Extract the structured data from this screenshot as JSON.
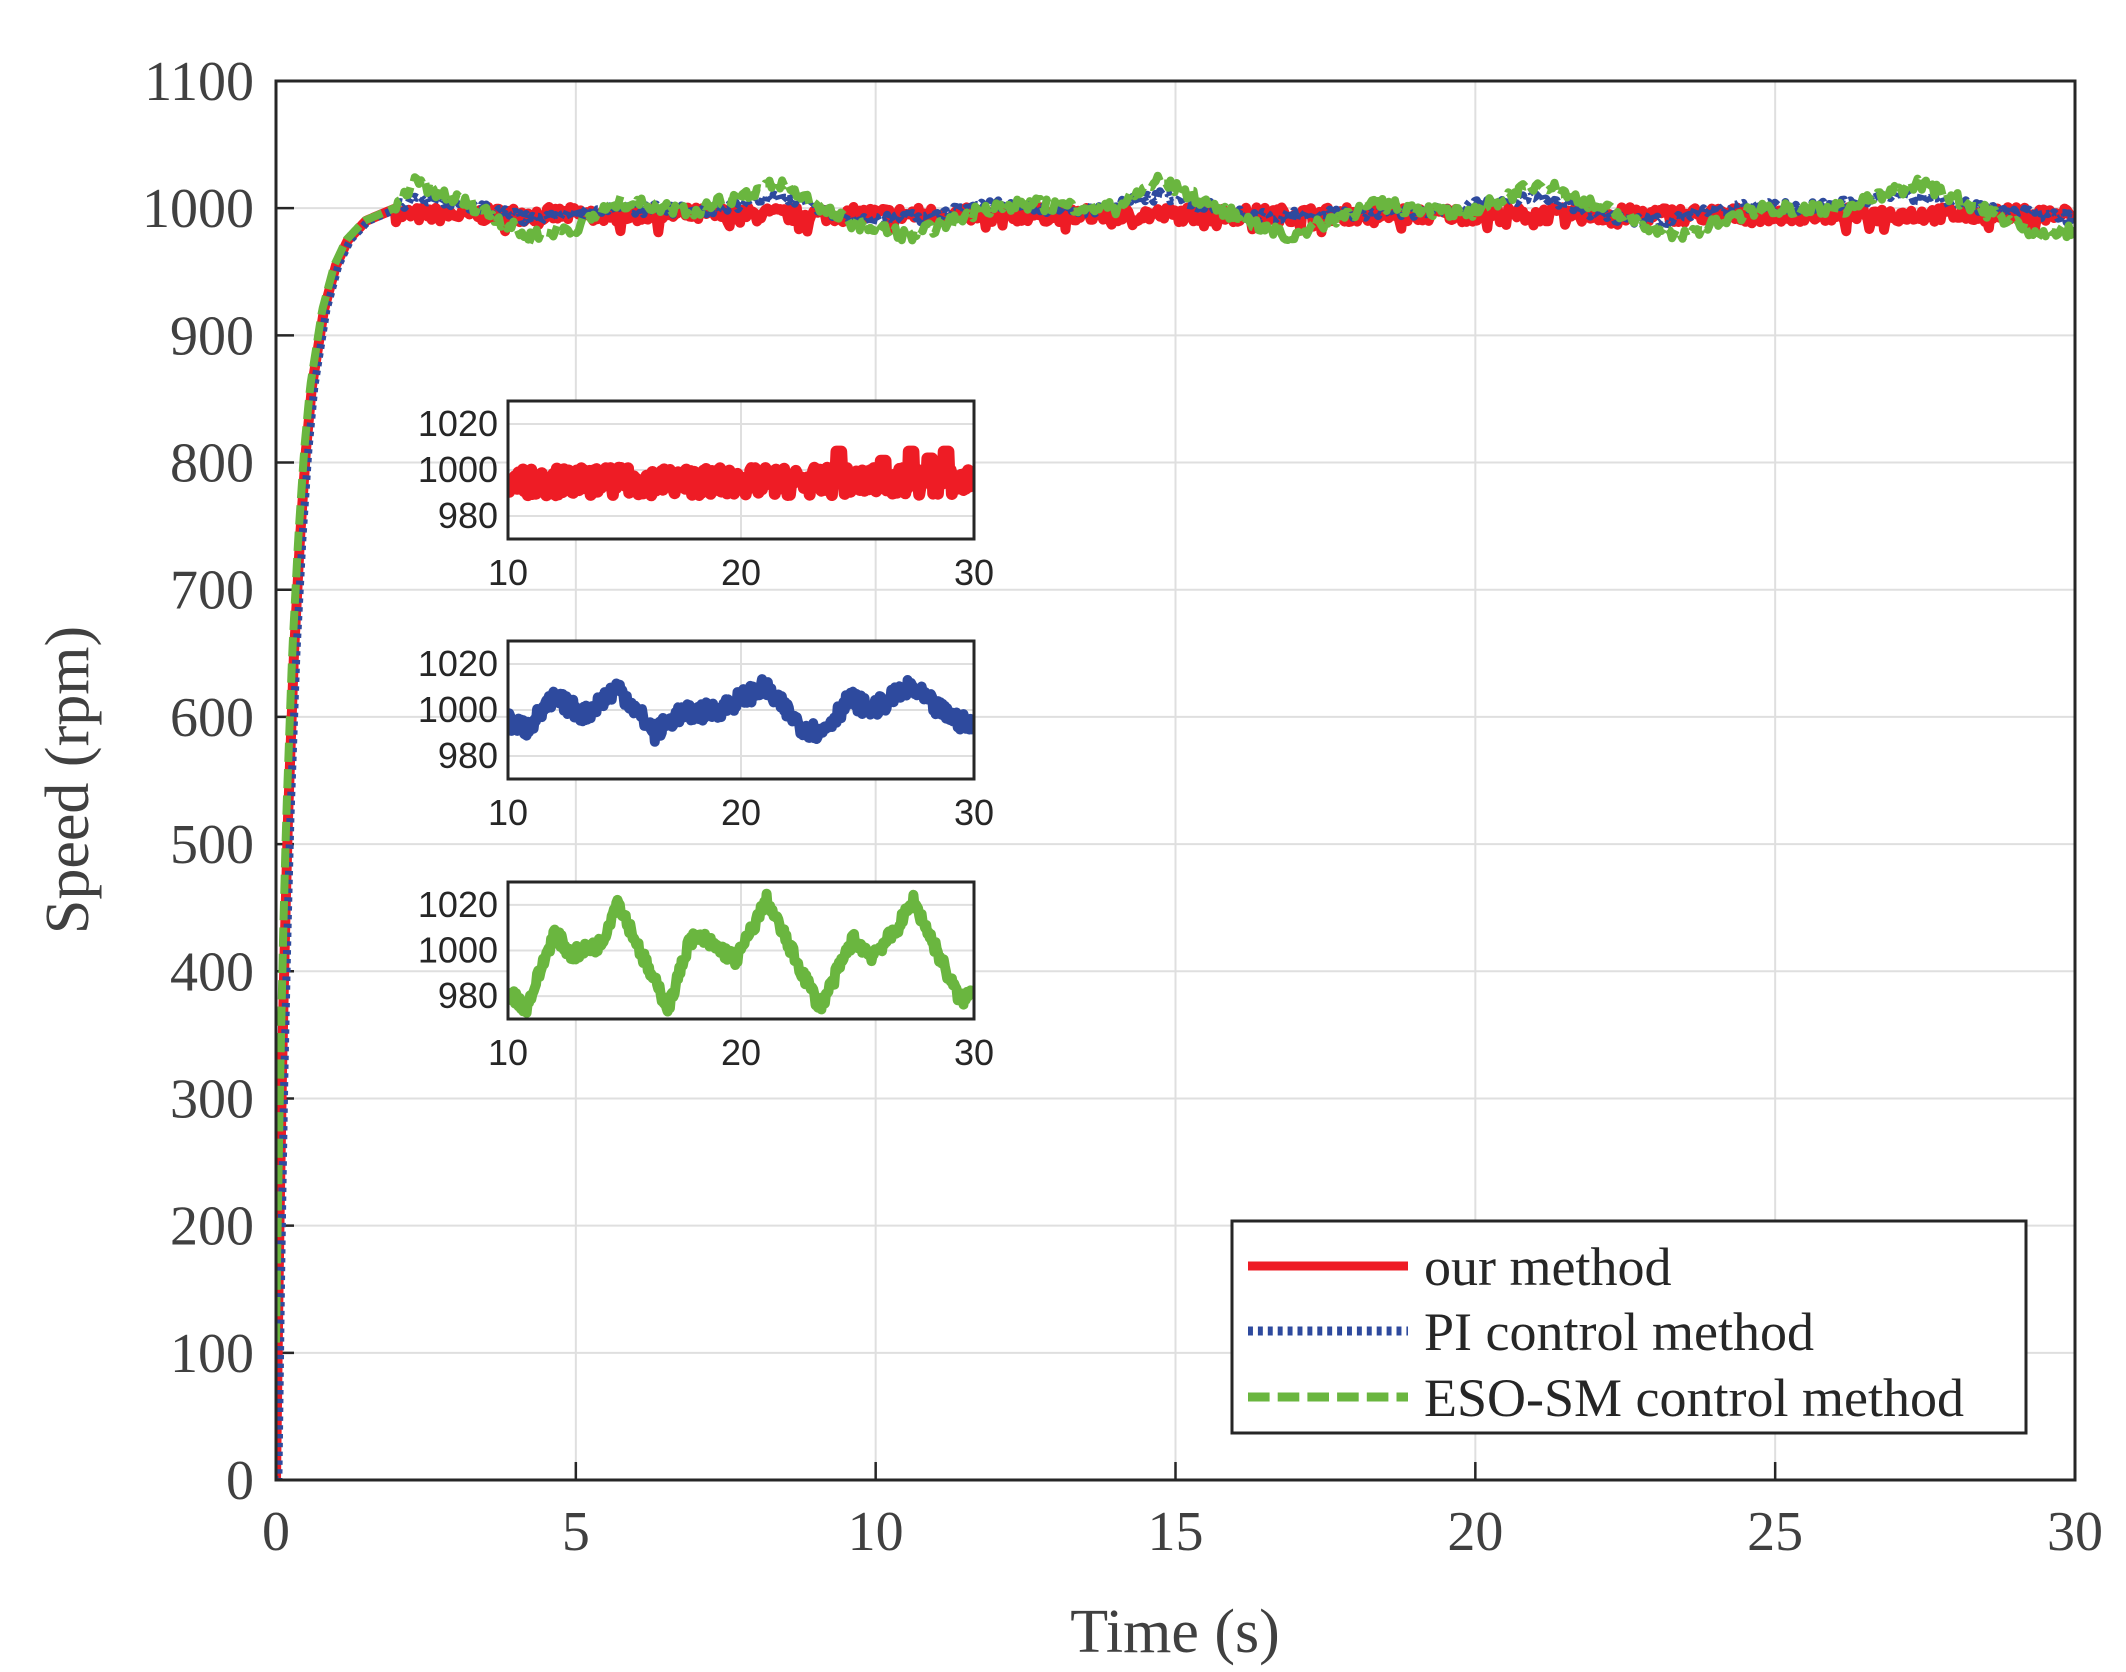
{
  "chart_data": [
    {
      "id": "main",
      "type": "line",
      "title": "",
      "xlabel": "Time (s)",
      "ylabel": "Speed (rpm)",
      "xlim": [
        0,
        30
      ],
      "ylim": [
        0,
        1100
      ],
      "xticks": [
        0,
        5,
        10,
        15,
        20,
        25,
        30
      ],
      "yticks": [
        0,
        100,
        200,
        300,
        400,
        500,
        600,
        700,
        800,
        900,
        1000,
        1100
      ],
      "grid": true,
      "legend_position": "bottom-right",
      "rise": {
        "t": [
          0,
          0.05,
          0.1,
          0.15,
          0.2,
          0.3,
          0.4,
          0.5,
          0.6,
          0.8,
          1.0,
          1.2,
          1.5,
          2.0
        ],
        "v": [
          0,
          180,
          320,
          430,
          520,
          650,
          740,
          810,
          860,
          920,
          955,
          975,
          990,
          1000
        ]
      },
      "series": [
        {
          "name": "our method",
          "color": "#ee1c25",
          "style": "solid",
          "steady": {
            "t": [
              2,
              30
            ],
            "v": [
              995,
              995
            ]
          },
          "ripple": 6
        },
        {
          "name": "PI control method",
          "color": "#2e4a9e",
          "style": "dotted",
          "steady": {
            "t": [
              2,
              2.4,
              3.5,
              4.3,
              5.5,
              7.2,
              8.5,
              9.7,
              10.8,
              12.0,
              13.5,
              14.8,
              16.3,
              17.5,
              19.3,
              21.0,
              22.3,
              23.2,
              24.4,
              25.5,
              27.2,
              28.5,
              30
            ],
            "v": [
              1000,
              1008,
              1000,
              990,
              1000,
              998,
              1010,
              990,
              993,
              1003,
              998,
              1010,
              993,
              996,
              997,
              1010,
              992,
              991,
              1003,
              1000,
              1010,
              1000,
              992
            ]
          },
          "ripple": 4
        },
        {
          "name": "ESO-SM control method",
          "color": "#6ab63f",
          "style": "dashed",
          "steady": {
            "t": [
              2,
              2.3,
              3.4,
              4.2,
              5.0,
              5.7,
              7.0,
              8.4,
              9.5,
              10.6,
              11.8,
              12.6,
              14.0,
              14.7,
              16.2,
              16.9,
              17.8,
              18.4,
              19.8,
              21.1,
              22.5,
              23.4,
              24.8,
              26.2,
              27.4,
              29.4,
              30
            ],
            "v": [
              1000,
              1020,
              1000,
              978,
              985,
              1005,
              998,
              1020,
              990,
              978,
              1000,
              1003,
              1000,
              1022,
              990,
              977,
              995,
              1003,
              995,
              1020,
              993,
              978,
              1000,
              1000,
              1020,
              980,
              982
            ]
          },
          "ripple": 5
        }
      ]
    },
    {
      "id": "inset-1",
      "type": "line",
      "series_name": "our method",
      "color": "#ee1c25",
      "xlim": [
        10,
        30
      ],
      "ylim": [
        970,
        1030
      ],
      "xticks": [
        10,
        20,
        30
      ],
      "yticks": [
        980,
        1000,
        1020
      ],
      "grid": true,
      "t": [
        10,
        30
      ],
      "v": [
        995,
        995
      ],
      "spikes_t": [
        24.2,
        26.1,
        27.3,
        28.1,
        28.8
      ],
      "spikes_v": [
        1008,
        1004,
        1008,
        1005,
        1008
      ],
      "ripple": 6
    },
    {
      "id": "inset-2",
      "type": "line",
      "series_name": "PI control method",
      "color": "#2e4a9e",
      "xlim": [
        10,
        30
      ],
      "ylim": [
        970,
        1030
      ],
      "xticks": [
        10,
        20,
        30
      ],
      "yticks": [
        980,
        1000,
        1020
      ],
      "grid": true,
      "t": [
        10,
        10.8,
        12.0,
        13.3,
        14.7,
        16.3,
        17.3,
        19.0,
        21.0,
        22.6,
        23.4,
        24.7,
        25.6,
        27.3,
        28.5,
        30
      ],
      "v": [
        995,
        992,
        1005,
        998,
        1010,
        990,
        998,
        1000,
        1010,
        993,
        990,
        1005,
        1000,
        1010,
        1000,
        992
      ],
      "ripple": 4
    },
    {
      "id": "inset-3",
      "type": "line",
      "series_name": "ESO-SM control method",
      "color": "#6ab63f",
      "xlim": [
        10,
        30
      ],
      "ylim": [
        970,
        1030
      ],
      "xticks": [
        10,
        20,
        30
      ],
      "yticks": [
        980,
        1000,
        1020
      ],
      "grid": true,
      "t": [
        10,
        10.8,
        12.0,
        12.7,
        14.0,
        14.7,
        16.2,
        16.9,
        17.8,
        18.4,
        19.8,
        21.1,
        22.5,
        23.4,
        24.8,
        25.6,
        26.6,
        27.4,
        29.4,
        30
      ],
      "v": [
        982,
        975,
        1008,
        998,
        1003,
        1022,
        988,
        975,
        1005,
        1005,
        996,
        1022,
        993,
        975,
        1005,
        998,
        1008,
        1022,
        978,
        982
      ],
      "ripple": 3
    }
  ]
}
